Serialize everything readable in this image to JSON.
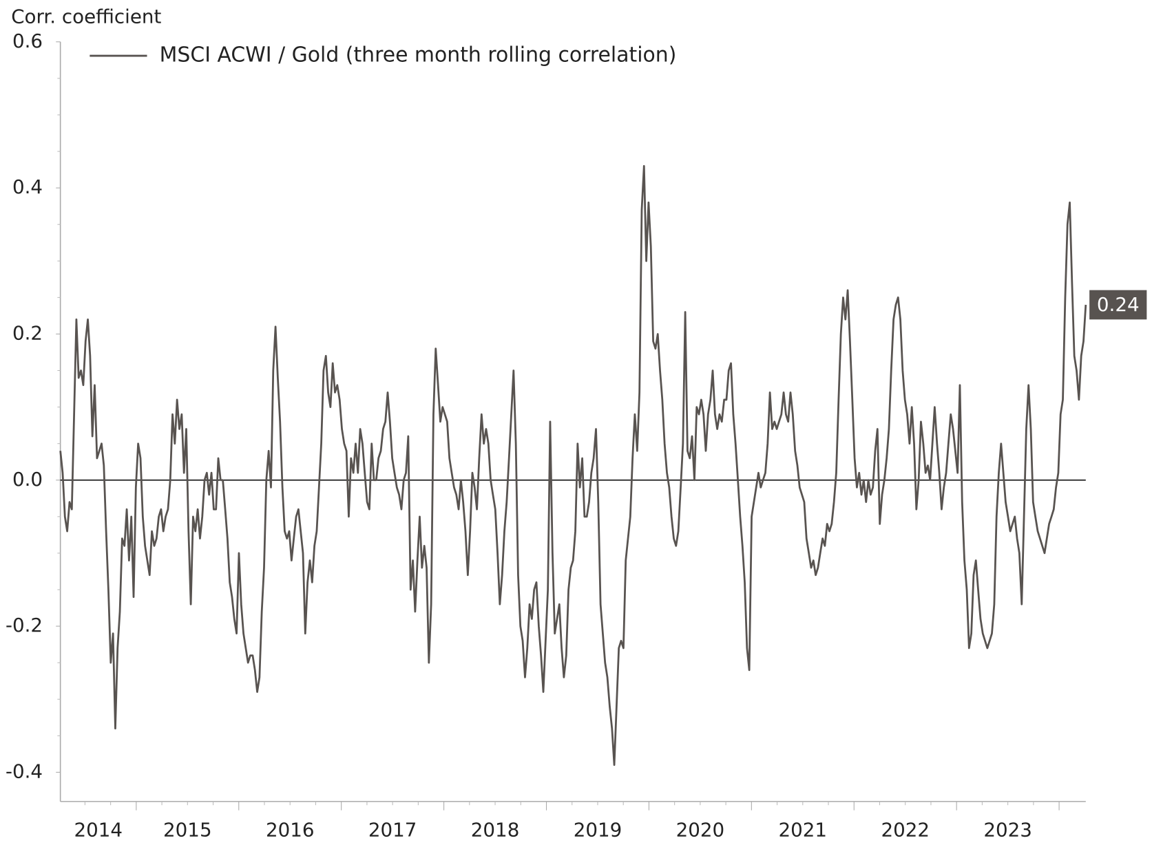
{
  "chart_data": {
    "type": "line",
    "y_label": "Corr. coefficient",
    "legend": "upper left",
    "grid": false,
    "xlim": [
      2014.26,
      2024.26
    ],
    "xticks": [
      2014,
      2015,
      2016,
      2017,
      2018,
      2019,
      2020,
      2021,
      2022,
      2023
    ],
    "ylim": [
      -0.44,
      0.6
    ],
    "yticks": [
      -0.4,
      -0.2,
      {
        "value": 0,
        "label": "0.0"
      },
      0.2,
      0.4,
      0.6
    ],
    "series": [
      {
        "name": "MSCI ACWI / Gold (three month rolling correlation)",
        "color": "#585350",
        "values": [
          0.04,
          0.01,
          -0.05,
          -0.07,
          -0.03,
          -0.04,
          0.09,
          0.22,
          0.14,
          0.15,
          0.13,
          0.19,
          0.22,
          0.17,
          0.06,
          0.13,
          0.03,
          0.04,
          0.05,
          0.02,
          -0.07,
          -0.15,
          -0.25,
          -0.21,
          -0.34,
          -0.23,
          -0.18,
          -0.08,
          -0.09,
          -0.04,
          -0.11,
          -0.05,
          -0.16,
          -0.01,
          0.05,
          0.03,
          -0.05,
          -0.09,
          -0.11,
          -0.13,
          -0.07,
          -0.09,
          -0.08,
          -0.05,
          -0.04,
          -0.07,
          -0.05,
          -0.04,
          0.0,
          0.09,
          0.05,
          0.11,
          0.07,
          0.09,
          0.01,
          0.07,
          -0.07,
          -0.17,
          -0.05,
          -0.07,
          -0.04,
          -0.08,
          -0.05,
          0.0,
          0.01,
          -0.02,
          0.01,
          -0.04,
          -0.04,
          0.03,
          0.0,
          0.0,
          -0.04,
          -0.08,
          -0.14,
          -0.16,
          -0.19,
          -0.21,
          -0.1,
          -0.17,
          -0.21,
          -0.23,
          -0.25,
          -0.24,
          -0.24,
          -0.26,
          -0.29,
          -0.27,
          -0.18,
          -0.12,
          0.0,
          0.04,
          -0.01,
          0.15,
          0.21,
          0.14,
          0.08,
          -0.01,
          -0.07,
          -0.08,
          -0.07,
          -0.11,
          -0.08,
          -0.05,
          -0.04,
          -0.07,
          -0.1,
          -0.21,
          -0.14,
          -0.11,
          -0.14,
          -0.09,
          -0.07,
          -0.01,
          0.05,
          0.15,
          0.17,
          0.12,
          0.1,
          0.16,
          0.12,
          0.13,
          0.11,
          0.07,
          0.05,
          0.04,
          -0.05,
          0.03,
          0.01,
          0.05,
          0.01,
          0.07,
          0.05,
          0.01,
          -0.03,
          -0.04,
          0.05,
          0.0,
          0.0,
          0.03,
          0.04,
          0.07,
          0.08,
          0.12,
          0.08,
          0.03,
          0.01,
          -0.01,
          -0.02,
          -0.04,
          0.0,
          0.01,
          0.06,
          -0.15,
          -0.11,
          -0.18,
          -0.11,
          -0.05,
          -0.12,
          -0.09,
          -0.12,
          -0.25,
          -0.17,
          0.09,
          0.18,
          0.13,
          0.08,
          0.1,
          0.09,
          0.08,
          0.03,
          0.01,
          -0.01,
          -0.02,
          -0.04,
          0.0,
          -0.03,
          -0.07,
          -0.13,
          -0.07,
          0.01,
          -0.01,
          -0.04,
          0.03,
          0.09,
          0.05,
          0.07,
          0.05,
          0.0,
          -0.02,
          -0.04,
          -0.1,
          -0.17,
          -0.13,
          -0.07,
          -0.03,
          0.03,
          0.09,
          0.15,
          0.05,
          -0.13,
          -0.2,
          -0.22,
          -0.27,
          -0.23,
          -0.17,
          -0.19,
          -0.15,
          -0.14,
          -0.2,
          -0.24,
          -0.29,
          -0.22,
          -0.15,
          0.08,
          -0.1,
          -0.21,
          -0.19,
          -0.17,
          -0.23,
          -0.27,
          -0.24,
          -0.15,
          -0.12,
          -0.11,
          -0.07,
          0.05,
          -0.01,
          0.03,
          -0.05,
          -0.05,
          -0.03,
          0.01,
          0.03,
          0.07,
          -0.03,
          -0.17,
          -0.21,
          -0.25,
          -0.27,
          -0.31,
          -0.34,
          -0.39,
          -0.31,
          -0.23,
          -0.22,
          -0.23,
          -0.11,
          -0.08,
          -0.05,
          0.03,
          0.09,
          0.04,
          0.12,
          0.37,
          0.43,
          0.3,
          0.38,
          0.32,
          0.19,
          0.18,
          0.2,
          0.15,
          0.11,
          0.05,
          0.01,
          -0.01,
          -0.05,
          -0.08,
          -0.09,
          -0.07,
          -0.01,
          0.05,
          0.23,
          0.04,
          0.03,
          0.06,
          0.0,
          0.1,
          0.09,
          0.11,
          0.09,
          0.04,
          0.09,
          0.11,
          0.15,
          0.09,
          0.07,
          0.09,
          0.08,
          0.11,
          0.11,
          0.15,
          0.16,
          0.09,
          0.05,
          0.0,
          -0.05,
          -0.09,
          -0.14,
          -0.23,
          -0.26,
          -0.05,
          -0.03,
          -0.01,
          0.01,
          -0.01,
          0.0,
          0.01,
          0.05,
          0.12,
          0.07,
          0.08,
          0.07,
          0.08,
          0.09,
          0.12,
          0.09,
          0.08,
          0.12,
          0.09,
          0.04,
          0.02,
          -0.01,
          -0.02,
          -0.03,
          -0.08,
          -0.1,
          -0.12,
          -0.11,
          -0.13,
          -0.12,
          -0.1,
          -0.08,
          -0.09,
          -0.06,
          -0.07,
          -0.06,
          -0.03,
          0.01,
          0.11,
          0.2,
          0.25,
          0.22,
          0.26,
          0.19,
          0.11,
          0.03,
          -0.01,
          0.01,
          -0.02,
          0.0,
          -0.03,
          0.0,
          -0.02,
          -0.01,
          0.04,
          0.07,
          -0.06,
          -0.02,
          0.0,
          0.03,
          0.07,
          0.15,
          0.22,
          0.24,
          0.25,
          0.22,
          0.15,
          0.11,
          0.09,
          0.05,
          0.1,
          0.05,
          -0.04,
          0.0,
          0.08,
          0.05,
          0.01,
          0.02,
          0.0,
          0.05,
          0.1,
          0.05,
          0.01,
          -0.04,
          -0.01,
          0.01,
          0.05,
          0.09,
          0.07,
          0.04,
          0.01,
          0.13,
          -0.03,
          -0.11,
          -0.15,
          -0.23,
          -0.21,
          -0.13,
          -0.11,
          -0.15,
          -0.19,
          -0.21,
          -0.22,
          -0.23,
          -0.22,
          -0.21,
          -0.17,
          -0.05,
          0.01,
          0.05,
          0.01,
          -0.03,
          -0.05,
          -0.07,
          -0.06,
          -0.05,
          -0.08,
          -0.1,
          -0.17,
          -0.05,
          0.07,
          0.13,
          0.07,
          -0.03,
          -0.05,
          -0.07,
          -0.08,
          -0.09,
          -0.1,
          -0.08,
          -0.06,
          -0.05,
          -0.04,
          -0.01,
          0.01,
          0.09,
          0.11,
          0.25,
          0.35,
          0.38,
          0.27,
          0.17,
          0.15,
          0.11,
          0.17,
          0.19,
          0.24
        ]
      }
    ]
  }
}
